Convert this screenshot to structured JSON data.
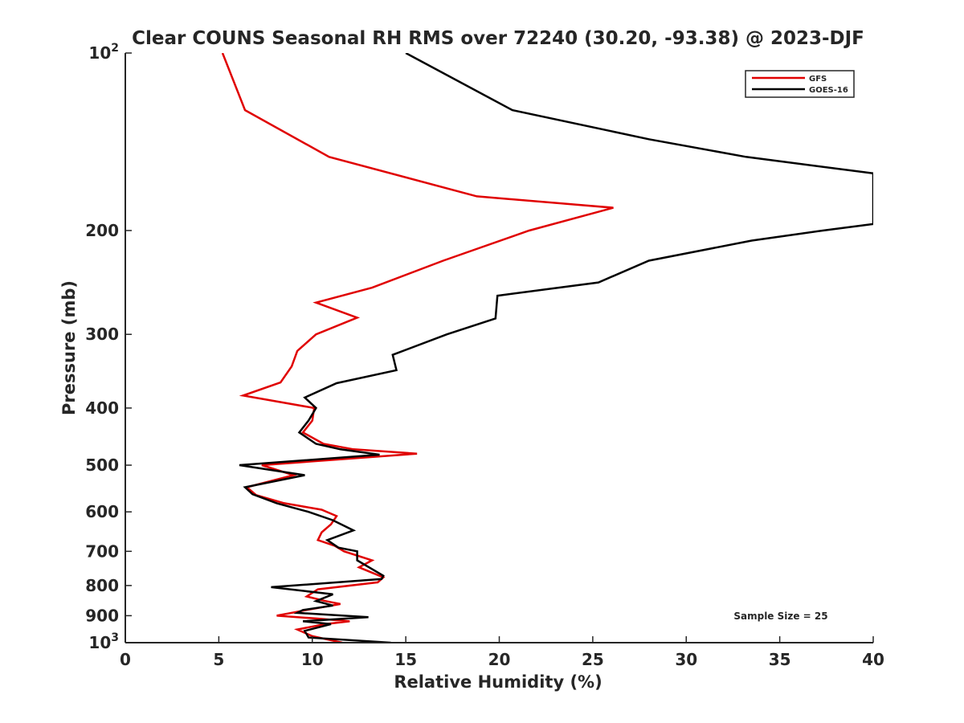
{
  "chart_data": {
    "type": "line",
    "title": "Clear COUNS Seasonal RH RMS over 72240 (30.20, -93.38) @ 2023-DJF",
    "xlabel": "Relative Humidity (%)",
    "ylabel": "Pressure (mb)",
    "xlim": [
      0,
      40
    ],
    "ylim": [
      100,
      1000
    ],
    "yscale": "log",
    "y_reversed": true,
    "xticks": [
      0,
      5,
      10,
      15,
      20,
      25,
      30,
      35,
      40
    ],
    "xtick_labels": [
      "0",
      "5",
      "10",
      "15",
      "20",
      "25",
      "30",
      "35",
      "40"
    ],
    "yticks": [
      100,
      200,
      300,
      400,
      500,
      600,
      700,
      800,
      900,
      1000
    ],
    "ytick_labels": [
      {
        "base": "10",
        "exp": "2"
      },
      {
        "base": "200",
        "exp": ""
      },
      {
        "base": "300",
        "exp": ""
      },
      {
        "base": "400",
        "exp": ""
      },
      {
        "base": "500",
        "exp": ""
      },
      {
        "base": "600",
        "exp": ""
      },
      {
        "base": "700",
        "exp": ""
      },
      {
        "base": "800",
        "exp": ""
      },
      {
        "base": "900",
        "exp": ""
      },
      {
        "base": "10",
        "exp": "3"
      }
    ],
    "legend_position": "top-right",
    "annotation": "Sample Size = 25",
    "series": [
      {
        "name": "GFS",
        "color": "#e00000",
        "points": [
          [
            5.2,
            100
          ],
          [
            6.4,
            125
          ],
          [
            10.9,
            150
          ],
          [
            18.8,
            175
          ],
          [
            26.1,
            183
          ],
          [
            21.6,
            200
          ],
          [
            17.0,
            225
          ],
          [
            13.2,
            250
          ],
          [
            10.2,
            265
          ],
          [
            12.4,
            281
          ],
          [
            10.2,
            300
          ],
          [
            9.2,
            320
          ],
          [
            8.9,
            340
          ],
          [
            8.3,
            362
          ],
          [
            6.3,
            381
          ],
          [
            10.1,
            400
          ],
          [
            10.0,
            420
          ],
          [
            9.5,
            440
          ],
          [
            10.6,
            460
          ],
          [
            12.2,
            470
          ],
          [
            15.6,
            478
          ],
          [
            7.3,
            500
          ],
          [
            9.0,
            520
          ],
          [
            6.5,
            545
          ],
          [
            7.0,
            562
          ],
          [
            8.5,
            580
          ],
          [
            10.5,
            595
          ],
          [
            11.3,
            610
          ],
          [
            11.0,
            630
          ],
          [
            10.5,
            650
          ],
          [
            10.3,
            670
          ],
          [
            11.2,
            685
          ],
          [
            11.7,
            700
          ],
          [
            13.2,
            725
          ],
          [
            12.5,
            745
          ],
          [
            13.8,
            775
          ],
          [
            13.5,
            790
          ],
          [
            10.3,
            812
          ],
          [
            9.7,
            835
          ],
          [
            10.7,
            850
          ],
          [
            11.5,
            860
          ],
          [
            9.7,
            880
          ],
          [
            8.1,
            900
          ],
          [
            10.2,
            910
          ],
          [
            12.0,
            920
          ],
          [
            10.7,
            930
          ],
          [
            9.2,
            950
          ],
          [
            10.0,
            975
          ],
          [
            11.6,
            1000
          ]
        ]
      },
      {
        "name": "GOES-16",
        "color": "#000000",
        "points": [
          [
            15.0,
            100
          ],
          [
            20.7,
            125
          ],
          [
            28.0,
            140
          ],
          [
            33.2,
            150
          ],
          [
            40.0,
            160
          ],
          [
            40.0,
            195
          ],
          [
            37.3,
            200
          ],
          [
            33.5,
            208
          ],
          [
            28.0,
            225
          ],
          [
            25.3,
            245
          ],
          [
            19.9,
            258
          ],
          [
            19.8,
            282
          ],
          [
            17.2,
            300
          ],
          [
            14.3,
            325
          ],
          [
            14.5,
            345
          ],
          [
            11.3,
            363
          ],
          [
            9.6,
            384
          ],
          [
            10.2,
            400
          ],
          [
            9.8,
            420
          ],
          [
            9.3,
            440
          ],
          [
            10.2,
            460
          ],
          [
            11.5,
            470
          ],
          [
            13.6,
            480
          ],
          [
            6.1,
            500
          ],
          [
            9.6,
            520
          ],
          [
            6.4,
            545
          ],
          [
            6.8,
            560
          ],
          [
            8.1,
            580
          ],
          [
            9.8,
            600
          ],
          [
            11.1,
            620
          ],
          [
            12.2,
            645
          ],
          [
            10.8,
            670
          ],
          [
            11.4,
            690
          ],
          [
            12.4,
            700
          ],
          [
            12.4,
            725
          ],
          [
            13.8,
            770
          ],
          [
            13.7,
            780
          ],
          [
            7.8,
            805
          ],
          [
            11.1,
            828
          ],
          [
            10.2,
            850
          ],
          [
            11.1,
            865
          ],
          [
            9.5,
            880
          ],
          [
            9.2,
            890
          ],
          [
            13.0,
            905
          ],
          [
            9.5,
            920
          ],
          [
            11.0,
            930
          ],
          [
            9.6,
            955
          ],
          [
            9.8,
            980
          ],
          [
            14.2,
            1000
          ]
        ]
      }
    ]
  }
}
